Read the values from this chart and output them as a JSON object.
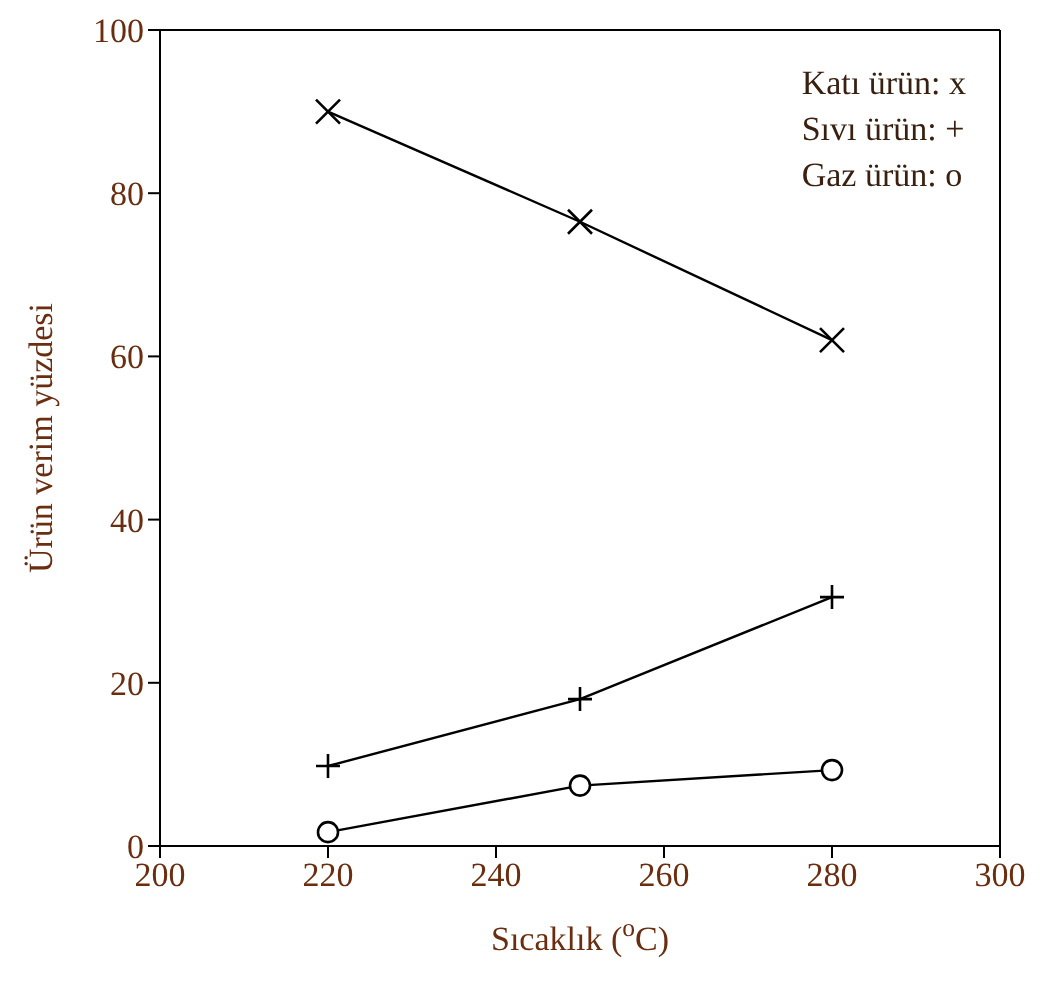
{
  "chart_data": {
    "type": "line",
    "xlabel": "Sıcaklık ($^{o}$C)",
    "ylabel": "Ürün verim yüzdesi",
    "x": [
      220,
      250,
      280
    ],
    "series": [
      {
        "color": "#000000",
        "marker": "x",
        "values": [
          90,
          76.5,
          62
        ]
      },
      {
        "color": "#000000",
        "marker": "plus",
        "values": [
          9.8,
          18,
          30.5
        ]
      },
      {
        "color": "#000000",
        "marker": "circle",
        "values": [
          1.7,
          7.4,
          9.3
        ]
      }
    ],
    "xlim": [
      200,
      300
    ],
    "xticks": [
      200,
      220,
      240,
      260,
      280,
      300
    ],
    "ylim": [
      0,
      100
    ],
    "yticks": [
      0,
      20,
      40,
      60,
      80,
      100
    ],
    "annotations": [
      "Katı ürün: x",
      "Sıvı ürün: +",
      "Gaz ürün: o"
    ],
    "line_style": "solid"
  }
}
